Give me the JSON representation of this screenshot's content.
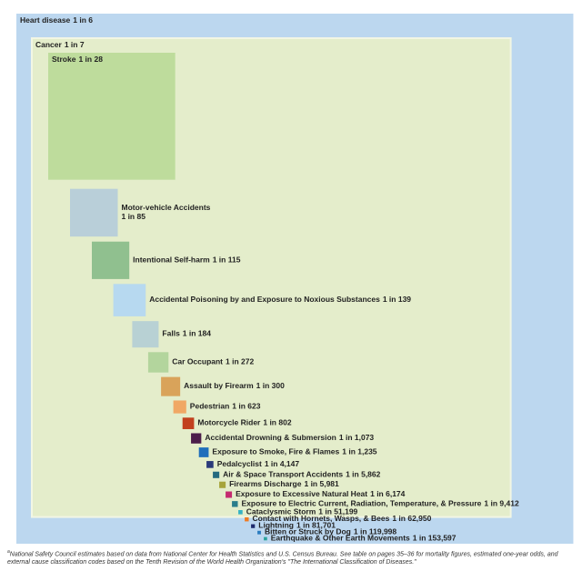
{
  "chart_data": {
    "type": "odds-squares",
    "categories": [
      "Heart disease",
      "Cancer",
      "Stroke",
      "Motor-vehicle Accidents",
      "Intentional Self-harm",
      "Accidental Poisoning by and Exposure to Noxious Substances",
      "Falls",
      "Car Occupant",
      "Assault by Firearm",
      "Pedestrian",
      "Motorcycle Rider",
      "Accidental Drowning & Submersion",
      "Exposure to Smoke, Fire & Flames",
      "Pedalcyclist",
      "Air & Space Transport Accidents",
      "Firearms Discharge",
      "Exposure to Excessive Natural Heat",
      "Exposure to Electric Current, Radiation, Temperature, & Pressure",
      "Cataclysmic Storm",
      "Contact with Hornets, Wasps, & Bees",
      "Lightning",
      "Bitten or Struck by Dog",
      "Earthquake & Other Earth Movements"
    ],
    "values": [
      6,
      7,
      28,
      85,
      115,
      139,
      184,
      272,
      300,
      623,
      802,
      1073,
      1235,
      4147,
      5862,
      5981,
      6174,
      9412,
      51199,
      62950,
      81701,
      119998,
      153597
    ],
    "value_labels": [
      "1 in 6",
      "1 in 7",
      "1 in 28",
      "1 in 85",
      "1 in 115",
      "1 in 139",
      "1 in 184",
      "1 in 272",
      "1 in 300",
      "1 in 623",
      "1 in 802",
      "1 in 1,073",
      "1 in 1,235",
      "1 in 4,147",
      "1 in 5,862",
      "1 in 5,981",
      "1 in 6,174",
      "1 in 9,412",
      "1 in 51,199",
      "1 in 62,950",
      "1 in 81,701",
      "1 in 119,998",
      "1 in 153,597"
    ],
    "colors": [
      "#bcd7ef",
      "#e4edcb",
      "#bedc9c",
      "#b9cfd9",
      "#90c08f",
      "#b7d9f0",
      "#b8d1d4",
      "#b3d59d",
      "#d9a35a",
      "#f0a865",
      "#c2401e",
      "#4b1d4a",
      "#1f6ebb",
      "#2a3a7a",
      "#246a7f",
      "#a6a43a",
      "#c42a6f",
      "#2a7d8b",
      "#34b2c3",
      "#ef7b22",
      "#1d2a6c",
      "#2b7cc0",
      "#2aa39c"
    ]
  },
  "footnote_marker": "a",
  "footnote": "National Safety Council estimates based on data from National Center for Health Statistics and U.S. Census Bureau. See table on pages 35–36 for mortality figures, estimated one-year odds, and external cause classification codes based on the Tenth Revision of the World Health Organization's \"The International Classification of Diseases.\""
}
